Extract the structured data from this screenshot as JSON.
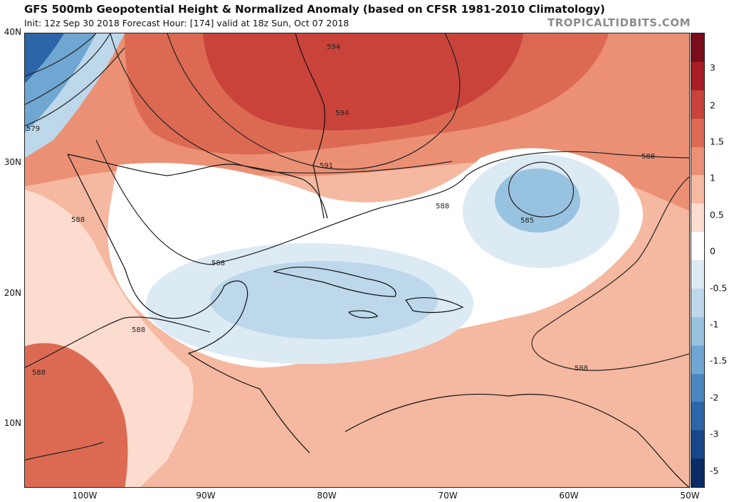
{
  "header": {
    "title": "GFS 500mb Geopotential Height & Normalized Anomaly (based on CFSR 1981-2010 Climatology)",
    "subtitle": "Init: 12z Sep 30 2018   Forecast Hour: [174]   valid at 18z Sun, Oct 07 2018",
    "brand": "TROPICALTIDBITS.COM"
  },
  "axes": {
    "lat_labels": [
      "40N",
      "30N",
      "20N",
      "10N"
    ],
    "lon_labels": [
      "100W",
      "90W",
      "80W",
      "70W",
      "60W",
      "50W"
    ]
  },
  "colorbar": {
    "ticks": [
      "3",
      "2",
      "1.5",
      "1",
      "0.5",
      "0",
      "-0.5",
      "-1",
      "-1.5",
      "-2",
      "-3",
      "-5"
    ],
    "colors": [
      "#7a0c1c",
      "#a81e24",
      "#c9433a",
      "#dc6a52",
      "#eb9075",
      "#f5b8a0",
      "#fbdccf",
      "#ffffff",
      "#dceaf4",
      "#bcd8ea",
      "#98c3e0",
      "#6fa6d2",
      "#4a87c0",
      "#2c66a8",
      "#17478a",
      "#0b2b66"
    ]
  },
  "contour_labels": {
    "c594a": "594",
    "c594b": "594",
    "c591": "591",
    "c588a": "588",
    "c588b": "588",
    "c588c": "588",
    "c588d": "588",
    "c588e": "588",
    "c588f": "588",
    "c588g": "588",
    "c585": "585",
    "c579": "579"
  }
}
